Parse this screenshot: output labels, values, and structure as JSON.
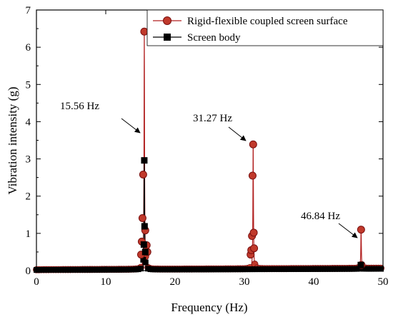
{
  "chart_data": {
    "type": "line",
    "xlabel": "Frequency (Hz)",
    "ylabel": "Vibration intensity (g)",
    "xlim": [
      0,
      50
    ],
    "ylim": [
      0,
      7
    ],
    "xticks": [
      0,
      10,
      20,
      30,
      40,
      50
    ],
    "yticks": [
      0,
      1,
      2,
      3,
      4,
      5,
      6,
      7
    ],
    "grid": false,
    "legend_position": "top-right",
    "series": [
      {
        "name": "Rigid-flexible coupled screen surface",
        "color": "#b22222",
        "marker": "circle",
        "peaks": [
          {
            "f": 15.56,
            "a": 6.42
          },
          {
            "f": 31.27,
            "a": 3.39
          },
          {
            "f": 46.84,
            "a": 1.1
          }
        ],
        "points": [
          [
            15.1,
            0.43
          ],
          [
            15.2,
            0.78
          ],
          [
            15.3,
            1.41
          ],
          [
            15.4,
            2.58
          ],
          [
            15.56,
            6.42
          ],
          [
            15.7,
            1.08
          ],
          [
            15.9,
            0.68
          ],
          [
            16.0,
            0.5
          ],
          [
            30.9,
            0.43
          ],
          [
            31.0,
            0.55
          ],
          [
            31.1,
            0.93
          ],
          [
            31.18,
            2.55
          ],
          [
            31.27,
            3.39
          ],
          [
            31.35,
            1.02
          ],
          [
            31.4,
            0.6
          ],
          [
            46.84,
            1.1
          ],
          [
            46.9,
            0.15
          ]
        ]
      },
      {
        "name": "Screen body",
        "color": "#000000",
        "marker": "square",
        "peaks": [
          {
            "f": 15.56,
            "a": 2.96
          },
          {
            "f": 46.84,
            "a": 0.15
          }
        ],
        "points": [
          [
            15.56,
            2.96
          ],
          [
            15.6,
            1.19
          ],
          [
            15.7,
            0.5
          ],
          [
            15.5,
            0.7
          ],
          [
            46.8,
            0.15
          ]
        ]
      }
    ],
    "annotations": [
      {
        "text": "15.56 Hz",
        "x": 15.56,
        "y": 6.42
      },
      {
        "text": "31.27 Hz",
        "x": 31.27,
        "y": 3.39
      },
      {
        "text": "46.84 Hz",
        "x": 46.84,
        "y": 1.1
      }
    ]
  }
}
